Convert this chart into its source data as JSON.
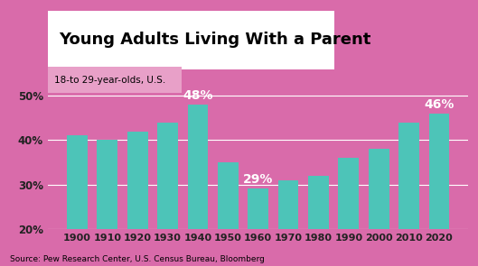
{
  "categories": [
    "1900",
    "1910",
    "1920",
    "1930",
    "1940",
    "1950",
    "1960",
    "1970",
    "1980",
    "1990",
    "2000",
    "2010",
    "2020"
  ],
  "values": [
    41,
    40,
    42,
    44,
    48,
    35,
    29,
    31,
    32,
    36,
    38,
    44,
    46
  ],
  "bar_color": "#4DC4B8",
  "background_color": "#D96BAA",
  "title": "Young Adults Living With a Parent",
  "subtitle": "18-to 29-year-olds, U.S.",
  "source": "Source: Pew Research Center, U.S. Census Bureau, Bloomberg",
  "ylim": [
    20,
    53
  ],
  "yticks": [
    20,
    30,
    40,
    50
  ],
  "ylabel_format": "{}%",
  "annotated_bars": {
    "1940": "48%",
    "1960": "29%",
    "2020": "46%"
  },
  "annotation_color": "white",
  "title_fontsize": 13,
  "subtitle_fontsize": 7.5,
  "source_fontsize": 6.5,
  "axis_tick_color": "#222222",
  "grid_color": "white",
  "bar_width": 0.68
}
